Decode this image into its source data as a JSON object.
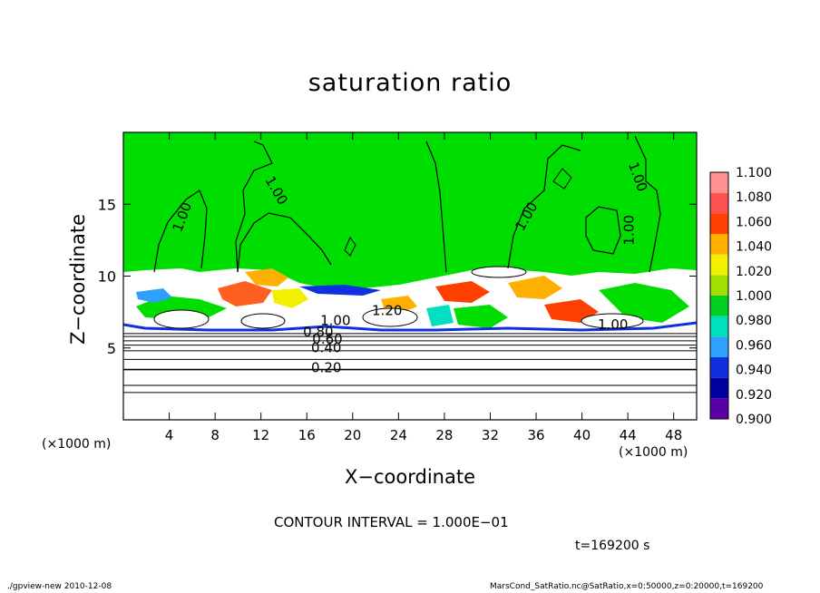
{
  "chart_data": {
    "type": "heatmap",
    "title": "saturation ratio",
    "xlabel": "X−coordinate",
    "ylabel": "Z−coordinate",
    "x_unit_left": "(×1000 m)",
    "x_unit_right": "(×1000 m)",
    "x_ticks": [
      "4",
      "8",
      "12",
      "16",
      "20",
      "24",
      "28",
      "32",
      "36",
      "40",
      "44",
      "48"
    ],
    "x_tick_values": [
      4,
      8,
      12,
      16,
      20,
      24,
      28,
      32,
      36,
      40,
      44,
      48
    ],
    "y_ticks": [
      "5",
      "10",
      "15"
    ],
    "y_tick_values": [
      5,
      10,
      15
    ],
    "xlim": [
      0,
      50
    ],
    "ylim": [
      0,
      20
    ],
    "colorbar": {
      "labels": [
        "0.900",
        "0.920",
        "0.940",
        "0.960",
        "0.980",
        "1.000",
        "1.020",
        "1.040",
        "1.060",
        "1.080",
        "1.100"
      ],
      "colors": [
        "#5a00a8",
        "#0000a0",
        "#1030e0",
        "#30a0ff",
        "#00e0c0",
        "#00d020",
        "#a0e000",
        "#f0f000",
        "#ffb000",
        "#ff4000",
        "#ff5050",
        "#ff9090"
      ]
    },
    "contour_labels": [
      {
        "text": "1.00",
        "x": 5.5,
        "z": 14.0,
        "rot": -70
      },
      {
        "text": "1.00",
        "x": 13.0,
        "z": 15.8,
        "rot": 60
      },
      {
        "text": "1.00",
        "x": 35.5,
        "z": 14.0,
        "rot": -60
      },
      {
        "text": "1.00",
        "x": 44.5,
        "z": 16.8,
        "rot": 70
      },
      {
        "text": "1.00",
        "x": 44.5,
        "z": 13.2,
        "rot": -90
      },
      {
        "text": "1.00",
        "x": 42.7,
        "z": 6.3,
        "rot": 0
      },
      {
        "text": "1.00",
        "x": 18.5,
        "z": 6.6,
        "rot": 0
      },
      {
        "text": "1.20",
        "x": 23.0,
        "z": 7.3,
        "rot": 0
      },
      {
        "text": "0.80",
        "x": 17.0,
        "z": 5.8,
        "rot": 0
      },
      {
        "text": "0.60",
        "x": 17.8,
        "z": 5.3,
        "rot": 0
      },
      {
        "text": "0.40",
        "x": 17.7,
        "z": 4.7,
        "rot": 0
      },
      {
        "text": "0.20",
        "x": 17.7,
        "z": 3.3,
        "rot": 0
      }
    ],
    "contour_interval": "CONTOUR INTERVAL = 1.000E−01",
    "time": "t=169200 s",
    "layers": {
      "supersaturated_top_z": 10.3,
      "cloud_layer_bottom_z": 6.2,
      "subsaturated_contour_levels_z": [
        1.9,
        2.4,
        3.5,
        4.2,
        4.8,
        5.2,
        5.5,
        5.8,
        6.0
      ]
    }
  },
  "footer_left": "./gpview-new  2010-12-08",
  "footer_right": "MarsCond_SatRatio.nc@SatRatio,x=0:50000,z=0:20000,t=169200"
}
